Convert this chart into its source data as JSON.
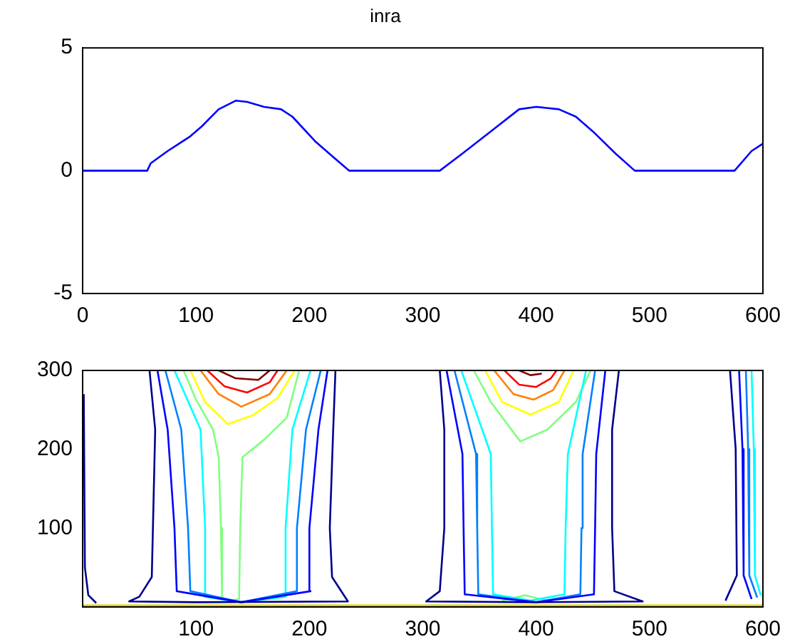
{
  "chart_data": [
    {
      "type": "line",
      "title": "inra",
      "xlim": [
        0,
        600
      ],
      "xticks": [
        0,
        100,
        200,
        300,
        400,
        500,
        600
      ],
      "ylim": [
        -5,
        5
      ],
      "yticks": [
        -5,
        0,
        5
      ],
      "grid": false,
      "legend": false,
      "marker": "none",
      "x": [
        0,
        57,
        60,
        75,
        95,
        105,
        120,
        135,
        145,
        160,
        175,
        185,
        205,
        220,
        235,
        315,
        335,
        360,
        385,
        400,
        420,
        435,
        450,
        470,
        487,
        575,
        590,
        600
      ],
      "series": [
        {
          "color": "#0000ff",
          "values": [
            0,
            0,
            0.3,
            0.8,
            1.4,
            1.8,
            2.5,
            2.85,
            2.8,
            2.6,
            2.5,
            2.2,
            1.2,
            0.6,
            0,
            0,
            0.7,
            1.6,
            2.5,
            2.6,
            2.5,
            2.2,
            1.6,
            0.7,
            0,
            0,
            0.8,
            1.1
          ]
        }
      ]
    },
    {
      "type": "line",
      "xlim": [
        0,
        600
      ],
      "xticks": [
        100,
        200,
        300,
        400,
        500,
        600
      ],
      "ylim": [
        0,
        300
      ],
      "yticks": [
        100,
        200,
        300
      ],
      "grid": false,
      "legend": false,
      "marker": "none",
      "series": [
        {
          "color": "#e0d000",
          "x": [
            0,
            600
          ],
          "values": [
            2,
            2
          ]
        },
        {
          "color": "#000090",
          "x": [
            1,
            2,
            5,
            12
          ],
          "values": [
            270,
            50,
            15,
            5
          ]
        },
        {
          "color": "#000090",
          "x": [
            59,
            64,
            62,
            61,
            50,
            41,
            100,
            234,
            220,
            218,
            221,
            223
          ],
          "values": [
            300,
            225,
            100,
            38,
            13,
            7,
            6,
            7,
            38,
            100,
            225,
            300
          ]
        },
        {
          "color": "#0000ff",
          "x": [
            66,
            75,
            81,
            83,
            140,
            201,
            200,
            208,
            216
          ],
          "values": [
            300,
            225,
            100,
            20,
            6,
            20,
            100,
            225,
            300
          ]
        },
        {
          "color": "#0080ff",
          "x": [
            73,
            87,
            93,
            95,
            140,
            189,
            189,
            197,
            210
          ],
          "values": [
            300,
            225,
            100,
            20,
            6,
            20,
            100,
            225,
            300
          ]
        },
        {
          "color": "#00ffff",
          "x": [
            81,
            104,
            108,
            108,
            140,
            179,
            179,
            185,
            201
          ],
          "values": [
            300,
            225,
            100,
            13,
            6,
            13,
            100,
            225,
            300
          ]
        },
        {
          "color": "#80ff80",
          "x": [
            89,
            100,
            115,
            120,
            122,
            123,
            130,
            138,
            139,
            141,
            160,
            180,
            191
          ],
          "values": [
            300,
            263,
            225,
            190,
            100,
            10,
            8,
            10,
            100,
            190,
            212,
            240,
            300
          ]
        },
        {
          "color": "#ffff00",
          "x": [
            95,
            108,
            128,
            150,
            172,
            187
          ],
          "values": [
            300,
            260,
            232,
            243,
            265,
            300
          ]
        },
        {
          "color": "#ff8000",
          "x": [
            104,
            120,
            140,
            165,
            180
          ],
          "values": [
            300,
            270,
            254,
            270,
            300
          ]
        },
        {
          "color": "#ff0000",
          "x": [
            110,
            125,
            145,
            165,
            172
          ],
          "values": [
            300,
            280,
            272,
            285,
            300
          ]
        },
        {
          "color": "#800000",
          "x": [
            120,
            135,
            155,
            165
          ],
          "values": [
            300,
            290,
            288,
            300
          ]
        },
        {
          "color": "#000090",
          "x": [
            315,
            319,
            319,
            315,
            303,
            400,
            494,
            469,
            467,
            467,
            473
          ],
          "values": [
            300,
            225,
            100,
            20,
            7,
            6,
            7,
            20,
            100,
            225,
            300
          ]
        },
        {
          "color": "#0000ff",
          "x": [
            321,
            335,
            336,
            337,
            400,
            451,
            452,
            453,
            461
          ],
          "values": [
            300,
            194,
            100,
            16,
            6,
            16,
            100,
            194,
            300
          ]
        },
        {
          "color": "#0080ff",
          "x": [
            328,
            347,
            348,
            349,
            400,
            439,
            440,
            441,
            452
          ],
          "values": [
            300,
            194,
            100,
            16,
            6,
            16,
            100,
            194,
            300
          ]
        },
        {
          "color": "#00ffff",
          "x": [
            334,
            360,
            361,
            362,
            395,
            425,
            426,
            428,
            444
          ],
          "values": [
            300,
            194,
            100,
            16,
            8,
            16,
            100,
            194,
            300
          ]
        },
        {
          "color": "#80ff80",
          "x": [
            345,
            360,
            386,
            410,
            435,
            448
          ],
          "values": [
            300,
            260,
            210,
            225,
            260,
            300
          ]
        },
        {
          "color": "#80ff80",
          "x": [
            370,
            390,
            410
          ],
          "values": [
            8,
            15,
            8
          ]
        },
        {
          "color": "#ffff00",
          "x": [
            355,
            370,
            395,
            420,
            433
          ],
          "values": [
            300,
            260,
            244,
            260,
            300
          ]
        },
        {
          "color": "#ff8000",
          "x": [
            363,
            380,
            398,
            415,
            425
          ],
          "values": [
            300,
            270,
            263,
            275,
            300
          ]
        },
        {
          "color": "#ff0000",
          "x": [
            372,
            385,
            400,
            413,
            418
          ],
          "values": [
            300,
            282,
            279,
            290,
            300
          ]
        },
        {
          "color": "#800000",
          "x": [
            385,
            395,
            405
          ],
          "values": [
            300,
            294,
            296
          ]
        },
        {
          "color": "#000090",
          "x": [
            571,
            576,
            577,
            567
          ],
          "values": [
            300,
            200,
            40,
            8
          ]
        },
        {
          "color": "#0000ff",
          "x": [
            579,
            582,
            583,
            590
          ],
          "values": [
            300,
            200,
            40,
            10
          ]
        },
        {
          "color": "#0080ff",
          "x": [
            585,
            587,
            588,
            595
          ],
          "values": [
            300,
            200,
            40,
            12
          ]
        },
        {
          "color": "#00ffff",
          "x": [
            590,
            592,
            593,
            598
          ],
          "values": [
            300,
            200,
            40,
            15
          ]
        }
      ]
    }
  ]
}
